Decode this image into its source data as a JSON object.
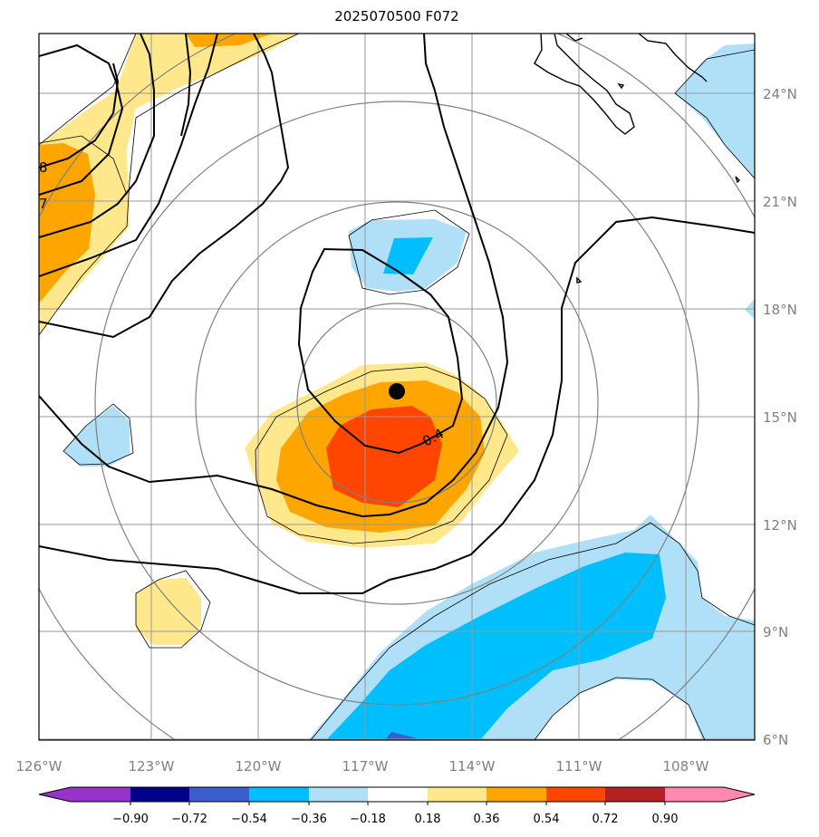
{
  "title": "2025070500 F072",
  "colors": {
    "c1": "#9932cc",
    "c2": "#00008b",
    "c3": "#3a5fcd",
    "c4": "#00bfff",
    "c5": "#b0e0f8",
    "c6": "#ffffff",
    "c7": "#ffe88c",
    "c8": "#ffa500",
    "c9": "#ff4500",
    "c10": "#b22222",
    "c11": "#ff88b0",
    "grid": "#999999",
    "ring": "#808080",
    "coast": "#000000"
  },
  "map": {
    "lon_ticks": [
      "126°W",
      "123°W",
      "120°W",
      "117°W",
      "114°W",
      "111°W",
      "108°W"
    ],
    "lat_ticks": [
      "24°N",
      "21°N",
      "18°N",
      "15°N",
      "12°N",
      "9°N",
      "6°N"
    ]
  },
  "contour_labels": [
    "0.4",
    "8",
    "7"
  ],
  "colorbar": {
    "ticks": [
      "−0.90",
      "−0.72",
      "−0.54",
      "−0.36",
      "−0.18",
      "0.18",
      "0.36",
      "0.54",
      "0.72",
      "0.90"
    ]
  },
  "marker": "storm-center"
}
